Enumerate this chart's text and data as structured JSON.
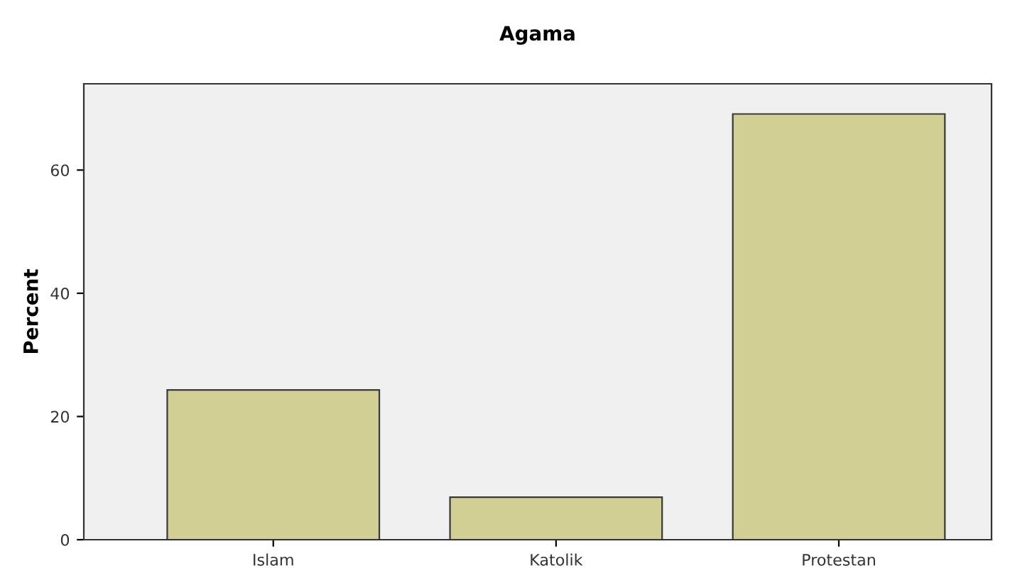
{
  "chart_data": {
    "type": "bar",
    "title": "Agama",
    "ylabel": "Percent",
    "categories": [
      "Islam",
      "Katolik",
      "Protestan"
    ],
    "values": [
      24.3,
      6.9,
      69.1
    ],
    "color": "#d1cf94",
    "ylim": [
      0,
      74
    ],
    "yticks": [
      0,
      20,
      40,
      60
    ],
    "grid": false
  }
}
